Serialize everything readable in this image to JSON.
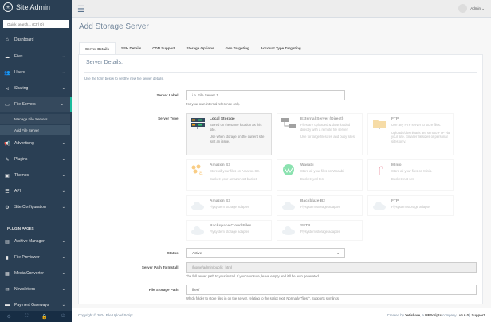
{
  "sidebar": {
    "brand": "Site Admin",
    "search_placeholder": "Quick search... (Ctrl Q)",
    "items": [
      {
        "label": "Dashboard",
        "icon": "home-icon"
      },
      {
        "label": "Files",
        "icon": "upload-icon"
      },
      {
        "label": "Users",
        "icon": "users-icon"
      },
      {
        "label": "Sharing",
        "icon": "share-icon"
      },
      {
        "label": "File Servers",
        "icon": "hdd-icon"
      },
      {
        "label": "Advertising",
        "icon": "bullhorn-icon"
      },
      {
        "label": "Plugins",
        "icon": "plug-icon"
      },
      {
        "label": "Themes",
        "icon": "image-icon"
      },
      {
        "label": "API",
        "icon": "server-icon"
      },
      {
        "label": "Site Configuration",
        "icon": "gear-icon"
      }
    ],
    "sub_items": [
      "Manage File Servers",
      "Add File Server"
    ],
    "section": "PLUGIN PAGES",
    "plugin_items": [
      "Archive Manager",
      "File Previewer",
      "Media Converter",
      "Newsletters",
      "Payment Gateways"
    ]
  },
  "header": {
    "user": "Admin"
  },
  "page_title": "Add Storage Server",
  "tabs": [
    "Server Details",
    "SSH Details",
    "CDN Support",
    "Storage Options",
    "Geo Targeting",
    "Account Type Targeting"
  ],
  "panel": {
    "title": "Server Details:",
    "intro": "Use the form below to set the new file server details.",
    "server_label": {
      "label": "Server Label:",
      "placeholder": "i.e. File Server 1",
      "help": "For your own internal reference only."
    },
    "server_type": {
      "label": "Server Type:",
      "cards": [
        {
          "title": "Local Storage",
          "desc": "Stored on the same location as this site.",
          "desc2": "Use when storage on the current site isn't an issue.",
          "selected": true
        },
        {
          "title": "External Server (Direct)",
          "desc": "Files are uploaded & downloaded directly with a remote file server.",
          "desc2": "Use for large filesizes and busy sites."
        },
        {
          "title": "FTP",
          "desc": "Use any FTP server to store files.",
          "desc2": "Uploads/downloads are sent to FTP via your site. Smaller filesizes or personal sites only."
        },
        {
          "title": "Amazon S3",
          "desc": "Store all your files on Amazon S3.",
          "desc2": "Bucket: your-amazon-s3-bucket"
        },
        {
          "title": "Wasabi",
          "desc": "Store all your files on Wasabi.",
          "desc2": "Bucket: yetl-test"
        },
        {
          "title": "Minio",
          "desc": "Store all your files on Minio.",
          "desc2": "Bucket: not set"
        },
        {
          "title": "Amazon S3",
          "desc": "Flysystem storage adapter"
        },
        {
          "title": "Backblaze B2",
          "desc": "Flysystem storage adapter"
        },
        {
          "title": "FTP",
          "desc": "Flysystem storage adapter"
        },
        {
          "title": "Rackspace Cloud Files",
          "desc": "Flysystem storage adapter"
        },
        {
          "title": "SFTP",
          "desc": "Flysystem storage adapter"
        }
      ]
    },
    "status": {
      "label": "Status:",
      "value": "Active"
    },
    "server_path": {
      "label": "Server Path To Install:",
      "value": "/home/admin/public_html",
      "help": "The full server path to your install. If you're unsure, leave empty and it'll be auto generated."
    },
    "storage_path": {
      "label": "File Storage Path:",
      "value": "files/",
      "help": "Which folder to store files in on the server, relating to the script root. Normally \"files/\". Supports symlinks"
    }
  },
  "footer": {
    "copyright": "Copyright © 2024 File Upload Script",
    "created_by": "Created by",
    "brand1": "Yetishare",
    "mid": ", a",
    "brand2": "MFScripts",
    "company": "company |",
    "version": "v5.6.0",
    "sep": "|",
    "support": "Support"
  }
}
